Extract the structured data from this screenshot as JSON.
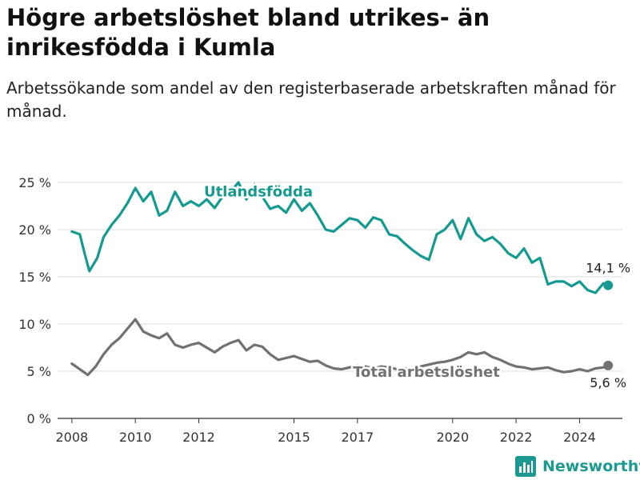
{
  "title": "Högre arbetslöshet bland utrikes- än inrikesfödda i Kumla",
  "subtitle": "Arbetssökande som andel av den registerbaserade arbetskraften månad för månad.",
  "brand": "Newsworthy",
  "colors": {
    "utrikes": "#159a92",
    "total": "#717171",
    "grid": "#dddddd",
    "axis": "#333333"
  },
  "chart_data": {
    "type": "line",
    "x_unit": "year",
    "ylim": [
      0,
      25
    ],
    "yticks": [
      0,
      5,
      10,
      15,
      20,
      25
    ],
    "ytick_labels": [
      "0 %",
      "5 %",
      "10 %",
      "15 %",
      "20 %",
      "25 %"
    ],
    "xticks": [
      2008,
      2010,
      2012,
      2015,
      2017,
      2020,
      2022,
      2024
    ],
    "xtick_labels": [
      "2008",
      "2010",
      "2012",
      "2015",
      "2017",
      "2020",
      "2022",
      "2024"
    ],
    "series": [
      {
        "name": "Utlandsfödda",
        "color": "#159a92",
        "end_label": "14,1 %",
        "x": [
          2008.0,
          2008.25,
          2008.4,
          2008.55,
          2008.8,
          2009.0,
          2009.25,
          2009.5,
          2009.75,
          2010.0,
          2010.25,
          2010.5,
          2010.75,
          2011.0,
          2011.25,
          2011.5,
          2011.75,
          2012.0,
          2012.25,
          2012.5,
          2012.75,
          2013.0,
          2013.25,
          2013.5,
          2013.75,
          2014.0,
          2014.25,
          2014.5,
          2014.75,
          2015.0,
          2015.25,
          2015.5,
          2015.75,
          2016.0,
          2016.25,
          2016.5,
          2016.75,
          2017.0,
          2017.25,
          2017.5,
          2017.75,
          2018.0,
          2018.25,
          2018.5,
          2018.75,
          2019.0,
          2019.25,
          2019.5,
          2019.75,
          2020.0,
          2020.25,
          2020.5,
          2020.75,
          2021.0,
          2021.25,
          2021.5,
          2021.75,
          2022.0,
          2022.25,
          2022.5,
          2022.75,
          2023.0,
          2023.25,
          2023.5,
          2023.75,
          2024.0,
          2024.25,
          2024.5,
          2024.75,
          2024.9
        ],
        "values": [
          19.8,
          19.5,
          17.5,
          15.6,
          17.0,
          19.2,
          20.5,
          21.5,
          22.8,
          24.4,
          23.0,
          24.0,
          21.5,
          22.0,
          24.0,
          22.5,
          23.0,
          22.5,
          23.2,
          22.3,
          23.5,
          24.0,
          25.0,
          23.2,
          24.8,
          23.5,
          22.2,
          22.5,
          21.8,
          23.2,
          22.0,
          22.8,
          21.5,
          20.0,
          19.8,
          20.5,
          21.2,
          21.0,
          20.2,
          21.3,
          21.0,
          19.5,
          19.3,
          18.5,
          17.8,
          17.2,
          16.8,
          19.5,
          20.0,
          21.0,
          19.0,
          21.2,
          19.5,
          18.8,
          19.2,
          18.5,
          17.5,
          17.0,
          18.0,
          16.5,
          17.0,
          14.2,
          14.5,
          14.5,
          14.0,
          14.5,
          13.6,
          13.3,
          14.3,
          14.1
        ]
      },
      {
        "name": "Total arbetslöshet",
        "color": "#717171",
        "end_label": "5,6 %",
        "x": [
          2008.0,
          2008.25,
          2008.5,
          2008.75,
          2009.0,
          2009.25,
          2009.5,
          2009.75,
          2010.0,
          2010.25,
          2010.5,
          2010.75,
          2011.0,
          2011.25,
          2011.5,
          2011.75,
          2012.0,
          2012.25,
          2012.5,
          2012.75,
          2013.0,
          2013.25,
          2013.5,
          2013.75,
          2014.0,
          2014.25,
          2014.5,
          2014.75,
          2015.0,
          2015.25,
          2015.5,
          2015.75,
          2016.0,
          2016.25,
          2016.5,
          2016.75,
          2017.0,
          2017.25,
          2017.5,
          2017.75,
          2018.0,
          2018.25,
          2018.5,
          2018.75,
          2019.0,
          2019.25,
          2019.5,
          2019.75,
          2020.0,
          2020.25,
          2020.5,
          2020.75,
          2021.0,
          2021.25,
          2021.5,
          2021.75,
          2022.0,
          2022.25,
          2022.5,
          2022.75,
          2023.0,
          2023.25,
          2023.5,
          2023.75,
          2024.0,
          2024.25,
          2024.5,
          2024.75,
          2024.9
        ],
        "values": [
          5.8,
          5.2,
          4.6,
          5.5,
          6.8,
          7.8,
          8.5,
          9.5,
          10.5,
          9.2,
          8.8,
          8.5,
          9.0,
          7.8,
          7.5,
          7.8,
          8.0,
          7.5,
          7.0,
          7.6,
          8.0,
          8.3,
          7.2,
          7.8,
          7.6,
          6.8,
          6.2,
          6.4,
          6.6,
          6.3,
          6.0,
          6.1,
          5.6,
          5.3,
          5.2,
          5.4,
          5.6,
          5.5,
          5.3,
          5.5,
          5.4,
          5.2,
          5.3,
          5.3,
          5.5,
          5.7,
          5.9,
          6.0,
          6.2,
          6.5,
          7.0,
          6.8,
          7.0,
          6.5,
          6.2,
          5.8,
          5.5,
          5.4,
          5.2,
          5.3,
          5.4,
          5.1,
          4.9,
          5.0,
          5.2,
          5.0,
          5.3,
          5.4,
          5.6
        ]
      }
    ]
  }
}
